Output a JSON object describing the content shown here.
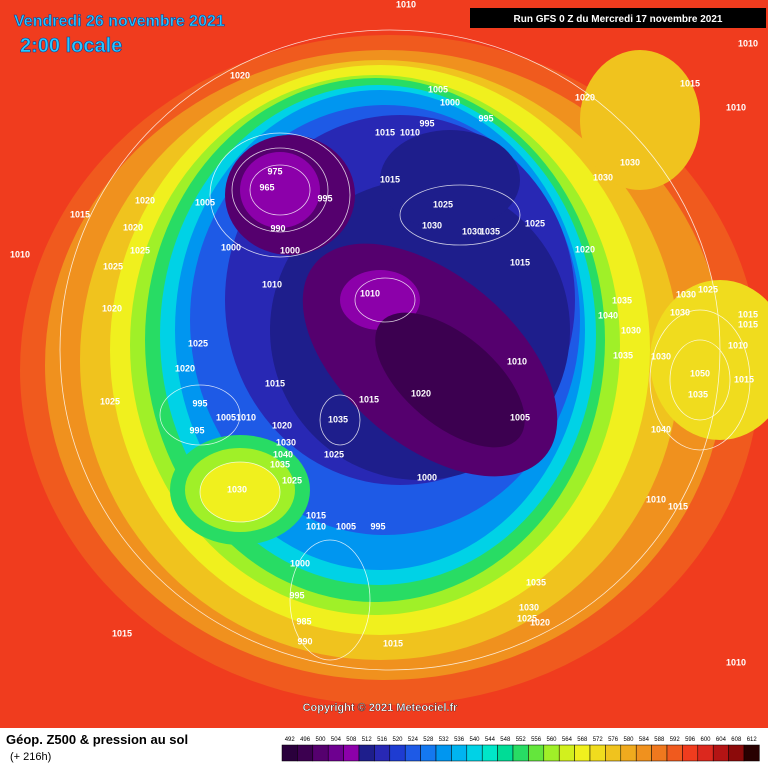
{
  "header": {
    "valid_date": "Vendredi 26 novembre 2021",
    "local_time": "2:00 locale",
    "run": "Run GFS 0 Z du Mercredi 17 novembre 2021"
  },
  "map": {
    "pressure_labels": [
      1020,
      1005,
      1000,
      995,
      995,
      1020,
      1015,
      1010,
      1015,
      1010,
      975,
      965,
      995,
      1005,
      990,
      1000,
      1000,
      1015,
      1025,
      1030,
      1030,
      1035,
      1025,
      1015,
      1020,
      1030,
      1030,
      1020,
      1020,
      1015,
      1025,
      1025,
      1010,
      1010,
      1010,
      1020,
      1025,
      1020,
      1015,
      1015,
      1020,
      1010,
      1005,
      1000,
      1025,
      995,
      995,
      1010,
      1005,
      1020,
      1030,
      1040,
      1035,
      1025,
      1025,
      1035,
      1030,
      1015,
      1010,
      1005,
      995,
      1000,
      995,
      985,
      990,
      1015,
      1015,
      1035,
      1030,
      1025,
      1020,
      1010,
      1015,
      1040,
      1035,
      1050,
      1030,
      1030,
      1035,
      1040,
      1035,
      1030,
      1025,
      1030,
      1015,
      1015,
      1010,
      1015,
      1010,
      1010,
      1015,
      1010
    ]
  },
  "copyright": "Copyright © 2021 Meteociel.fr",
  "footer": {
    "title": "Géop. Z500 & pression au sol",
    "lead_time": "(+ 216h)",
    "scale": [
      492,
      496,
      500,
      504,
      508,
      512,
      516,
      520,
      524,
      528,
      532,
      536,
      540,
      544,
      548,
      552,
      556,
      560,
      564,
      568,
      572,
      576,
      580,
      584,
      588,
      592,
      596,
      600,
      604,
      608,
      612
    ]
  }
}
